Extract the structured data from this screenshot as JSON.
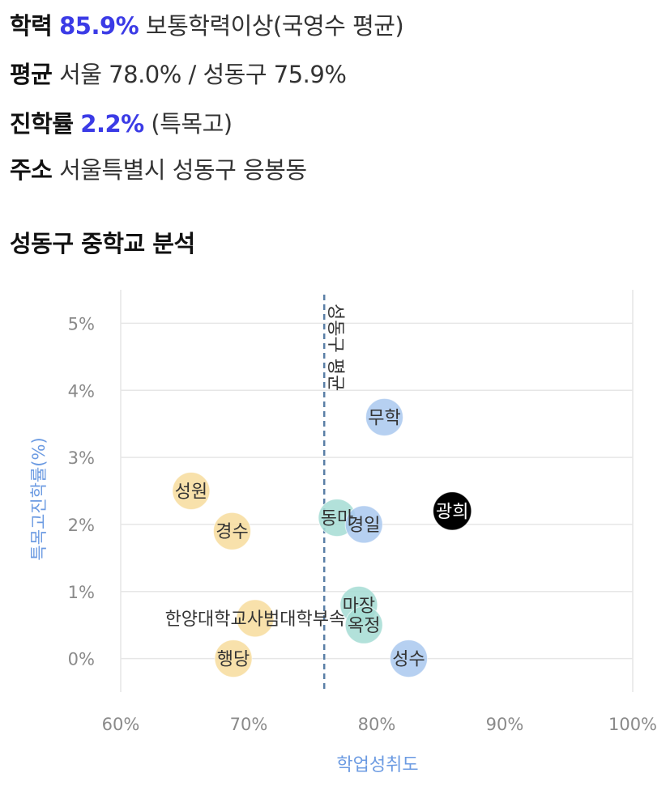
{
  "info": {
    "achievement": {
      "label": "학력",
      "value": "85.9%",
      "desc": "보통학력이상(국영수 평균)"
    },
    "average": {
      "label": "평균",
      "desc": "서울 78.0% / 성동구 75.9%"
    },
    "advancement": {
      "label": "진학률",
      "value": "2.2%",
      "desc": "(특목고)"
    },
    "address": {
      "label": "주소",
      "desc": "서울특별시 성동구 응봉동"
    }
  },
  "section_title": "성동구 중학교 분석",
  "colors": {
    "blue": "#a9c8ee",
    "teal": "#a5dcd3",
    "yellow": "#f7dc9c",
    "highlight": "#000000",
    "axis_label": "#6c9be2",
    "avg_line": "#5a7fa6",
    "grid": "#e6e6e6"
  },
  "chart_data": {
    "type": "scatter",
    "xlabel": "학업성취도",
    "ylabel": "특목고진학률(%)",
    "xlim": [
      60,
      100
    ],
    "ylim": [
      -0.5,
      5.5
    ],
    "xticks": [
      "60%",
      "70%",
      "80%",
      "90%",
      "100%"
    ],
    "xtick_values": [
      60,
      70,
      80,
      90,
      100
    ],
    "yticks": [
      "0%",
      "1%",
      "2%",
      "3%",
      "4%",
      "5%"
    ],
    "ytick_values": [
      0,
      1,
      2,
      3,
      4,
      5
    ],
    "grid": true,
    "reference_line": {
      "x": 75.9,
      "label": "성동구 평균"
    },
    "points": [
      {
        "name": "무학",
        "x": 80.6,
        "y": 3.6,
        "group": "blue"
      },
      {
        "name": "성원",
        "x": 65.5,
        "y": 2.5,
        "group": "yellow"
      },
      {
        "name": "경수",
        "x": 68.7,
        "y": 1.9,
        "group": "yellow"
      },
      {
        "name": "동마",
        "x": 76.9,
        "y": 2.1,
        "group": "teal"
      },
      {
        "name": "경일",
        "x": 79.0,
        "y": 2.0,
        "group": "blue"
      },
      {
        "name": "광희",
        "x": 85.9,
        "y": 2.2,
        "group": "highlight"
      },
      {
        "name": "한양대학교사범대학부속",
        "x": 70.5,
        "y": 0.6,
        "group": "yellow"
      },
      {
        "name": "마장",
        "x": 78.6,
        "y": 0.8,
        "group": "teal"
      },
      {
        "name": "옥정",
        "x": 79.0,
        "y": 0.5,
        "group": "teal"
      },
      {
        "name": "성수",
        "x": 82.5,
        "y": 0.0,
        "group": "blue"
      },
      {
        "name": "행당",
        "x": 68.8,
        "y": 0.0,
        "group": "yellow"
      }
    ]
  }
}
